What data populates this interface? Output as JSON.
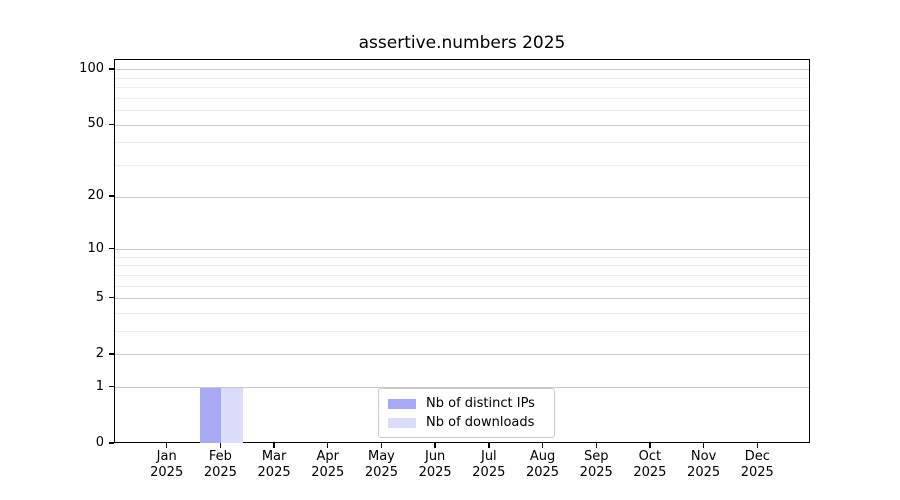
{
  "chart_data": {
    "type": "bar",
    "title": "assertive.numbers 2025",
    "categories": [
      "Jan",
      "Feb",
      "Mar",
      "Apr",
      "May",
      "Jun",
      "Jul",
      "Aug",
      "Sep",
      "Oct",
      "Nov",
      "Dec"
    ],
    "year_label": "2025",
    "series": [
      {
        "name": "Nb of distinct IPs",
        "color": "#a9a9f3",
        "values": [
          0,
          1,
          0,
          0,
          0,
          0,
          0,
          0,
          0,
          0,
          0,
          0
        ]
      },
      {
        "name": "Nb of downloads",
        "color": "#dbdbfa",
        "values": [
          0,
          1,
          0,
          0,
          0,
          0,
          0,
          0,
          0,
          0,
          0,
          0
        ]
      }
    ],
    "y_scale": "log1p",
    "y_major_ticks": [
      0,
      1,
      2,
      5,
      10,
      20,
      50,
      100
    ],
    "y_minor_gridlines": [
      3,
      4,
      6,
      7,
      8,
      9,
      30,
      40,
      60,
      70,
      80,
      90
    ],
    "ylim": [
      0,
      113
    ],
    "grid": "horizontal",
    "legend_position": "lower center",
    "colors": {
      "axis": "#000000",
      "major_grid": "#c9c9c9",
      "minor_grid": "#ededed",
      "background": "#ffffff"
    }
  }
}
